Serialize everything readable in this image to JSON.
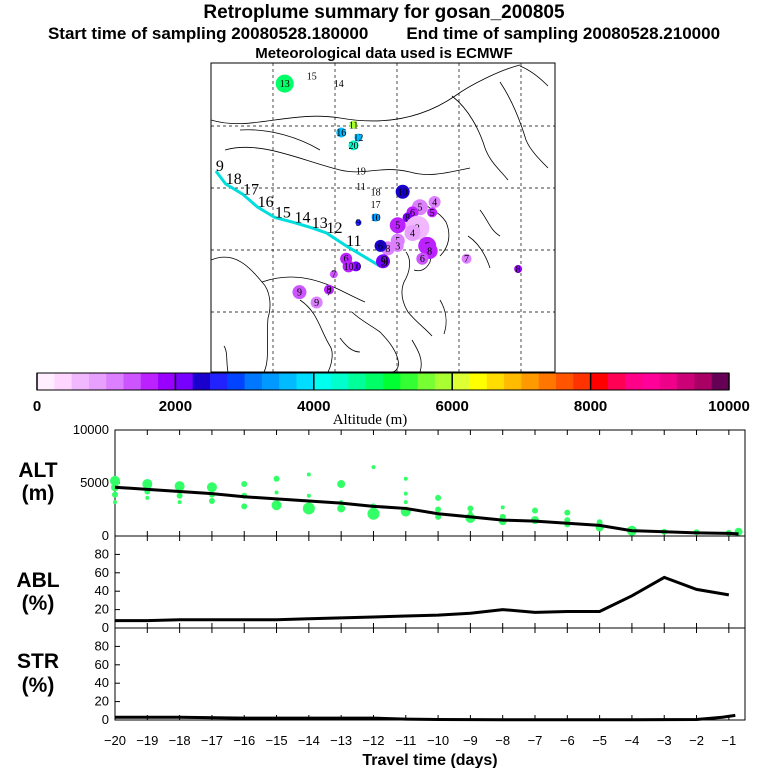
{
  "header": {
    "title": "Retroplume summary for gosan_200805",
    "start_label": "Start time of sampling 20080528.180000",
    "end_label": "End time of sampling 20080528.210000",
    "met_label": "Meteorological data used is ECMWF"
  },
  "colorbar": {
    "title": "Altitude  (m)",
    "tick_labels": [
      "0",
      "2000",
      "4000",
      "6000",
      "8000",
      "10000"
    ],
    "colors": [
      "#ffeeff",
      "#ffd6ff",
      "#f2b8ff",
      "#e8a0ff",
      "#dd80ff",
      "#cc55ff",
      "#bb22ff",
      "#9900ff",
      "#7700ff",
      "#1a00cc",
      "#2222ff",
      "#0044ff",
      "#0077ff",
      "#0099ff",
      "#00bbff",
      "#00ddff",
      "#00ffee",
      "#00ffcc",
      "#00ff99",
      "#00ff66",
      "#00ff33",
      "#33ff33",
      "#77ff33",
      "#aaff33",
      "#ddff33",
      "#ffff00",
      "#ffdd00",
      "#ffbb00",
      "#ff9900",
      "#ff7700",
      "#ff5500",
      "#ff3300",
      "#ff0000",
      "#ff0055",
      "#ff0088",
      "#ff0099",
      "#ee0088",
      "#cc0077",
      "#aa0066",
      "#660055"
    ]
  },
  "map": {
    "altitude_max_m": 10000,
    "labels": [
      {
        "day": "13",
        "lon": 75.0,
        "lat": 66.0,
        "alt": 4800,
        "size": 9
      },
      {
        "day": "15",
        "lon": 80.5,
        "lat": 67.5,
        "alt": 3800,
        "size": 0
      },
      {
        "day": "14",
        "lon": 86.0,
        "lat": 66.0,
        "alt": 3800,
        "size": 0
      },
      {
        "day": "11",
        "lon": 89.0,
        "lat": 58.0,
        "alt": 5900,
        "size": 4
      },
      {
        "day": "16",
        "lon": 86.5,
        "lat": 56.5,
        "alt": 3700,
        "size": 5
      },
      {
        "day": "12",
        "lon": 90.0,
        "lat": 55.5,
        "alt": 3600,
        "size": 4
      },
      {
        "day": "20",
        "lon": 89.0,
        "lat": 54.0,
        "alt": 4400,
        "size": 5
      },
      {
        "day": "19",
        "lon": 90.5,
        "lat": 49.0,
        "alt": 3500,
        "size": 0
      },
      {
        "day": "11",
        "lon": 90.5,
        "lat": 46.0,
        "alt": 3300,
        "size": 0
      },
      {
        "day": "18",
        "lon": 93.5,
        "lat": 45.0,
        "alt": 3000,
        "size": 0
      },
      {
        "day": "17",
        "lon": 93.5,
        "lat": 42.5,
        "alt": 3200,
        "size": 0
      },
      {
        "day": "10",
        "lon": 99.0,
        "lat": 45.0,
        "alt": 2300,
        "size": 7
      },
      {
        "day": "10",
        "lon": 93.5,
        "lat": 40.0,
        "alt": 3400,
        "size": 4
      },
      {
        "day": "9",
        "lon": 90.0,
        "lat": 39.0,
        "alt": 2500,
        "size": 3
      },
      {
        "day": "5",
        "lon": 102.5,
        "lat": 42.0,
        "alt": 1200,
        "size": 8
      },
      {
        "day": "4",
        "lon": 105.5,
        "lat": 43.0,
        "alt": 1000,
        "size": 6
      },
      {
        "day": "6",
        "lon": 101.0,
        "lat": 41.0,
        "alt": 1500,
        "size": 6
      },
      {
        "day": "8",
        "lon": 100.0,
        "lat": 40.0,
        "alt": 2000,
        "size": 5
      },
      {
        "day": "5",
        "lon": 98.0,
        "lat": 38.5,
        "alt": 1600,
        "size": 8
      },
      {
        "day": "5",
        "lon": 105.0,
        "lat": 41.0,
        "alt": 1600,
        "size": 5
      },
      {
        "day": "3",
        "lon": 102.0,
        "lat": 38.0,
        "alt": 500,
        "size": 12
      },
      {
        "day": "4",
        "lon": 101.0,
        "lat": 37.0,
        "alt": 800,
        "size": 8
      },
      {
        "day": "7",
        "lon": 104.0,
        "lat": 34.5,
        "alt": 1500,
        "size": 9
      },
      {
        "day": "8",
        "lon": 104.5,
        "lat": 33.5,
        "alt": 1600,
        "size": 8
      },
      {
        "day": "6",
        "lon": 103.0,
        "lat": 32.0,
        "alt": 1300,
        "size": 6
      },
      {
        "day": "5",
        "lon": 98.0,
        "lat": 35.5,
        "alt": 1000,
        "size": 7
      },
      {
        "day": "3",
        "lon": 98.0,
        "lat": 34.5,
        "alt": 1200,
        "size": 6
      },
      {
        "day": "8",
        "lon": 96.0,
        "lat": 34.0,
        "alt": 1100,
        "size": 7
      },
      {
        "day": "6",
        "lon": 94.5,
        "lat": 34.5,
        "alt": 2300,
        "size": 6
      },
      {
        "day": "9",
        "lon": 95.0,
        "lat": 31.5,
        "alt": 2000,
        "size": 7
      },
      {
        "day": "10",
        "lon": 89.5,
        "lat": 30.5,
        "alt": 2200,
        "size": 5
      },
      {
        "day": "6",
        "lon": 87.5,
        "lat": 32.0,
        "alt": 1500,
        "size": 6
      },
      {
        "day": "10",
        "lon": 88.0,
        "lat": 30.5,
        "alt": 1600,
        "size": 6
      },
      {
        "day": "7",
        "lon": 85.0,
        "lat": 29.0,
        "alt": 1300,
        "size": 4
      },
      {
        "day": "7",
        "lon": 112.0,
        "lat": 32.0,
        "alt": 1200,
        "size": 5
      },
      {
        "day": "8",
        "lon": 122.5,
        "lat": 30.0,
        "alt": 1800,
        "size": 4
      },
      {
        "day": "9",
        "lon": 78.0,
        "lat": 25.5,
        "alt": 1400,
        "size": 7
      },
      {
        "day": "9",
        "lon": 81.5,
        "lat": 23.5,
        "alt": 1200,
        "size": 6
      },
      {
        "day": "8",
        "lon": 84.0,
        "lat": 26.0,
        "alt": 1600,
        "size": 5
      },
      {
        "day": "7",
        "lon": 84.0,
        "lat": 25.5,
        "alt": 1500,
        "size": 0
      }
    ],
    "track_labels": [
      {
        "text": "9",
        "lon": 61.0,
        "lat": 49.0
      },
      {
        "text": "18",
        "lon": 63.0,
        "lat": 46.5
      },
      {
        "text": "17",
        "lon": 66.5,
        "lat": 44.5
      },
      {
        "text": "16",
        "lon": 69.5,
        "lat": 42.0
      },
      {
        "text": "15",
        "lon": 73.0,
        "lat": 40.0
      },
      {
        "text": "14",
        "lon": 77.0,
        "lat": 39.0
      },
      {
        "text": "13",
        "lon": 80.5,
        "lat": 38.0
      },
      {
        "text": "12",
        "lon": 83.5,
        "lat": 37.0
      },
      {
        "text": "11",
        "lon": 87.5,
        "lat": 34.5
      },
      {
        "text": "9",
        "lon": 94.5,
        "lat": 30.5
      }
    ]
  },
  "chart_data": [
    {
      "type": "scatter",
      "title": "ALT (m)",
      "ylabel": "ALT\n(m)",
      "ylim": [
        0,
        10000
      ],
      "yticks": [
        0,
        5000,
        10000
      ],
      "xlim": [
        -20,
        -0.5
      ],
      "mean_line": {
        "x": [
          -20,
          -19,
          -18,
          -17,
          -16,
          -15,
          -14,
          -13,
          -12,
          -11,
          -10,
          -9,
          -8,
          -7,
          -6,
          -5,
          -4,
          -3,
          -2,
          -1,
          -0.7
        ],
        "y": [
          4600,
          4400,
          4200,
          4000,
          3700,
          3500,
          3300,
          3100,
          2800,
          2600,
          2100,
          1800,
          1500,
          1400,
          1200,
          1000,
          500,
          400,
          300,
          250,
          200
        ]
      },
      "points": [
        {
          "x": -20,
          "y": 5200,
          "s": 5
        },
        {
          "x": -20,
          "y": 4600,
          "s": 4
        },
        {
          "x": -20,
          "y": 3900,
          "s": 3
        },
        {
          "x": -20,
          "y": 3200,
          "s": 2
        },
        {
          "x": -19,
          "y": 4900,
          "s": 5
        },
        {
          "x": -19,
          "y": 4200,
          "s": 3
        },
        {
          "x": -19,
          "y": 3600,
          "s": 2
        },
        {
          "x": -18,
          "y": 4700,
          "s": 5
        },
        {
          "x": -18,
          "y": 3800,
          "s": 3
        },
        {
          "x": -18,
          "y": 3200,
          "s": 2
        },
        {
          "x": -17,
          "y": 4600,
          "s": 5
        },
        {
          "x": -17,
          "y": 3900,
          "s": 3
        },
        {
          "x": -17,
          "y": 3300,
          "s": 3
        },
        {
          "x": -16,
          "y": 4900,
          "s": 3
        },
        {
          "x": -16,
          "y": 3800,
          "s": 3
        },
        {
          "x": -16,
          "y": 2800,
          "s": 3
        },
        {
          "x": -15,
          "y": 5400,
          "s": 3
        },
        {
          "x": -15,
          "y": 4100,
          "s": 2
        },
        {
          "x": -15,
          "y": 2900,
          "s": 5
        },
        {
          "x": -14,
          "y": 5800,
          "s": 2
        },
        {
          "x": -14,
          "y": 3800,
          "s": 2
        },
        {
          "x": -14,
          "y": 2600,
          "s": 6
        },
        {
          "x": -13,
          "y": 4900,
          "s": 4
        },
        {
          "x": -13,
          "y": 3200,
          "s": 2
        },
        {
          "x": -13,
          "y": 2600,
          "s": 4
        },
        {
          "x": -12,
          "y": 6500,
          "s": 2
        },
        {
          "x": -12,
          "y": 2800,
          "s": 3
        },
        {
          "x": -12,
          "y": 2100,
          "s": 6
        },
        {
          "x": -11,
          "y": 5400,
          "s": 2
        },
        {
          "x": -11,
          "y": 4000,
          "s": 2
        },
        {
          "x": -11,
          "y": 3200,
          "s": 2
        },
        {
          "x": -11,
          "y": 2300,
          "s": 5
        },
        {
          "x": -10,
          "y": 3600,
          "s": 3
        },
        {
          "x": -10,
          "y": 2500,
          "s": 3
        },
        {
          "x": -10,
          "y": 1800,
          "s": 3
        },
        {
          "x": -9,
          "y": 2600,
          "s": 3
        },
        {
          "x": -9,
          "y": 2200,
          "s": 2
        },
        {
          "x": -9,
          "y": 1700,
          "s": 5
        },
        {
          "x": -8,
          "y": 2700,
          "s": 2
        },
        {
          "x": -8,
          "y": 1800,
          "s": 3
        },
        {
          "x": -8,
          "y": 1400,
          "s": 4
        },
        {
          "x": -7,
          "y": 2400,
          "s": 3
        },
        {
          "x": -7,
          "y": 1500,
          "s": 4
        },
        {
          "x": -6,
          "y": 2200,
          "s": 3
        },
        {
          "x": -6,
          "y": 1500,
          "s": 3
        },
        {
          "x": -6,
          "y": 1100,
          "s": 3
        },
        {
          "x": -5,
          "y": 1300,
          "s": 3
        },
        {
          "x": -5,
          "y": 800,
          "s": 4
        },
        {
          "x": -4,
          "y": 500,
          "s": 5
        },
        {
          "x": -4,
          "y": 300,
          "s": 3
        },
        {
          "x": -3,
          "y": 400,
          "s": 3
        },
        {
          "x": -2,
          "y": 350,
          "s": 3
        },
        {
          "x": -1,
          "y": 300,
          "s": 3
        },
        {
          "x": -0.7,
          "y": 400,
          "s": 4
        }
      ]
    },
    {
      "type": "line",
      "title": "ABL (%)",
      "ylabel": "ABL\n(%)",
      "ylim": [
        0,
        100
      ],
      "yticks": [
        0,
        20,
        40,
        60,
        80
      ],
      "xlim": [
        -20,
        -0.5
      ],
      "x": [
        -20,
        -19,
        -18,
        -17,
        -16,
        -15,
        -14,
        -13,
        -12,
        -11,
        -10,
        -9,
        -8,
        -7,
        -6,
        -5,
        -4,
        -3,
        -2,
        -1
      ],
      "y": [
        8,
        8,
        9,
        9,
        9,
        9,
        10,
        11,
        12,
        13,
        14,
        16,
        20,
        17,
        18,
        18,
        35,
        55,
        42,
        36
      ]
    },
    {
      "type": "line",
      "title": "STR (%)",
      "ylabel": "STR\n(%)",
      "ylim": [
        0,
        100
      ],
      "yticks": [
        0,
        20,
        40,
        60,
        80
      ],
      "xlim": [
        -20,
        -0.5
      ],
      "xlabel": "Travel time (days)",
      "xticks": [
        -20,
        -19,
        -18,
        -17,
        -16,
        -15,
        -14,
        -13,
        -12,
        -11,
        -10,
        -9,
        -8,
        -7,
        -6,
        -5,
        -4,
        -3,
        -2,
        -1
      ],
      "x": [
        -20,
        -18,
        -16,
        -14,
        -12,
        -11,
        -10,
        -8,
        -6,
        -4,
        -2,
        -1.2,
        -0.8
      ],
      "y": [
        3,
        3,
        2,
        2,
        2,
        1,
        0.5,
        0.3,
        0.3,
        0.3,
        0.5,
        3,
        5
      ]
    }
  ],
  "panel_labels": {
    "alt_line1": "ALT",
    "alt_line2": "(m)",
    "abl_line1": "ABL",
    "abl_line2": "(%)",
    "str_line1": "STR",
    "str_line2": "(%)"
  }
}
